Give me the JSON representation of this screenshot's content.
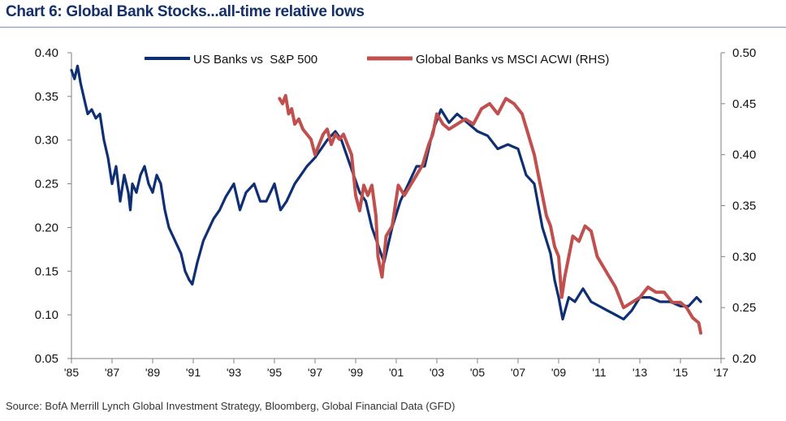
{
  "title": "Chart 6: Global Bank Stocks...all-time relative lows",
  "source": "Source: BofA Merrill Lynch Global Investment Strategy, Bloomberg, Global Financial Data (GFD)",
  "colors": {
    "series1": "#0f2f74",
    "series2": "#c0504d",
    "title": "#14306a",
    "axis": "#808080"
  },
  "chart_data": {
    "type": "line",
    "title": "Chart 6: Global Bank Stocks...all-time relative lows",
    "xlabel": "",
    "ylabel": "",
    "xlim": [
      1985,
      2017
    ],
    "ylim_left": [
      0.05,
      0.4
    ],
    "ylim_right": [
      0.2,
      0.5
    ],
    "x_ticks": [
      1985,
      1987,
      1989,
      1991,
      1993,
      1995,
      1997,
      1999,
      2001,
      2003,
      2005,
      2007,
      2009,
      2011,
      2013,
      2015,
      2017
    ],
    "x_tick_labels": [
      "'85",
      "'87",
      "'89",
      "'91",
      "'93",
      "'95",
      "'97",
      "'99",
      "'01",
      "'03",
      "'05",
      "'07",
      "'09",
      "'11",
      "'13",
      "'15",
      "'17"
    ],
    "y_left_ticks": [
      "0.40",
      "0.35",
      "0.30",
      "0.25",
      "0.20",
      "0.15",
      "0.10",
      "0.05"
    ],
    "y_right_ticks": [
      "0.50",
      "0.45",
      "0.40",
      "0.35",
      "0.30",
      "0.25",
      "0.20"
    ],
    "legend_position": "top",
    "series": [
      {
        "name": "US Banks vs  S&P 500",
        "axis": "left",
        "x": [
          1985.0,
          1985.15,
          1985.3,
          1985.45,
          1985.6,
          1985.8,
          1986.0,
          1986.2,
          1986.4,
          1986.6,
          1986.8,
          1987.0,
          1987.2,
          1987.4,
          1987.6,
          1987.8,
          1987.9,
          1988.0,
          1988.2,
          1988.4,
          1988.6,
          1988.8,
          1989.0,
          1989.2,
          1989.4,
          1989.6,
          1989.8,
          1990.0,
          1990.2,
          1990.4,
          1990.6,
          1990.8,
          1990.95,
          1991.2,
          1991.5,
          1991.8,
          1992.0,
          1992.3,
          1992.6,
          1993.0,
          1993.3,
          1993.6,
          1994.0,
          1994.3,
          1994.6,
          1995.0,
          1995.3,
          1995.6,
          1996.0,
          1996.3,
          1996.6,
          1997.0,
          1997.3,
          1997.6,
          1998.0,
          1998.3,
          1998.6,
          1998.9,
          1999.2,
          1999.5,
          1999.8,
          2000.1,
          2000.4,
          2000.8,
          2001.2,
          2001.6,
          2002.0,
          2002.4,
          2002.8,
          2003.2,
          2003.6,
          2004.0,
          2004.5,
          2005.0,
          2005.5,
          2006.0,
          2006.5,
          2007.0,
          2007.4,
          2007.8,
          2008.2,
          2008.6,
          2008.8,
          2009.0,
          2009.2,
          2009.5,
          2009.8,
          2010.2,
          2010.6,
          2011.0,
          2011.4,
          2011.8,
          2012.2,
          2012.6,
          2013.0,
          2013.5,
          2014.0,
          2014.5,
          2015.0,
          2015.4,
          2015.8,
          2016.0
        ],
        "values": [
          0.38,
          0.37,
          0.385,
          0.365,
          0.35,
          0.33,
          0.335,
          0.325,
          0.33,
          0.3,
          0.28,
          0.25,
          0.27,
          0.23,
          0.26,
          0.24,
          0.22,
          0.25,
          0.24,
          0.26,
          0.27,
          0.25,
          0.24,
          0.26,
          0.25,
          0.22,
          0.2,
          0.19,
          0.18,
          0.17,
          0.15,
          0.14,
          0.135,
          0.16,
          0.185,
          0.2,
          0.21,
          0.22,
          0.235,
          0.25,
          0.22,
          0.24,
          0.25,
          0.23,
          0.23,
          0.25,
          0.22,
          0.23,
          0.25,
          0.26,
          0.27,
          0.28,
          0.29,
          0.3,
          0.31,
          0.3,
          0.28,
          0.26,
          0.24,
          0.23,
          0.2,
          0.18,
          0.16,
          0.2,
          0.23,
          0.25,
          0.27,
          0.27,
          0.31,
          0.335,
          0.32,
          0.33,
          0.32,
          0.31,
          0.305,
          0.29,
          0.295,
          0.29,
          0.26,
          0.25,
          0.2,
          0.17,
          0.14,
          0.12,
          0.095,
          0.12,
          0.115,
          0.13,
          0.115,
          0.11,
          0.105,
          0.1,
          0.095,
          0.105,
          0.12,
          0.12,
          0.115,
          0.115,
          0.11,
          0.11,
          0.12,
          0.115
        ]
      },
      {
        "name": "Global Banks vs MSCI ACWI (RHS)",
        "axis": "right",
        "x": [
          1995.25,
          1995.4,
          1995.55,
          1995.7,
          1995.85,
          1996.0,
          1996.2,
          1996.4,
          1996.6,
          1996.8,
          1997.0,
          1997.2,
          1997.4,
          1997.6,
          1997.8,
          1998.0,
          1998.2,
          1998.4,
          1998.6,
          1998.8,
          1999.0,
          1999.2,
          1999.4,
          1999.6,
          1999.8,
          2000.0,
          2000.1,
          2000.3,
          2000.5,
          2000.8,
          2001.1,
          2001.4,
          2001.7,
          2002.0,
          2002.3,
          2002.6,
          2002.8,
          2003.0,
          2003.3,
          2003.6,
          2004.0,
          2004.4,
          2004.8,
          2005.2,
          2005.6,
          2006.0,
          2006.4,
          2006.8,
          2007.2,
          2007.5,
          2007.8,
          2008.0,
          2008.2,
          2008.4,
          2008.6,
          2008.8,
          2009.0,
          2009.15,
          2009.3,
          2009.5,
          2009.7,
          2010.0,
          2010.3,
          2010.6,
          2010.9,
          2011.2,
          2011.5,
          2011.8,
          2012.2,
          2012.6,
          2013.0,
          2013.4,
          2013.8,
          2014.2,
          2014.6,
          2015.0,
          2015.3,
          2015.6,
          2015.9,
          2016.0
        ],
        "values": [
          0.455,
          0.45,
          0.458,
          0.44,
          0.445,
          0.43,
          0.435,
          0.425,
          0.42,
          0.415,
          0.4,
          0.41,
          0.42,
          0.425,
          0.41,
          0.42,
          0.415,
          0.42,
          0.41,
          0.4,
          0.36,
          0.345,
          0.37,
          0.36,
          0.37,
          0.34,
          0.3,
          0.28,
          0.32,
          0.33,
          0.37,
          0.36,
          0.37,
          0.38,
          0.39,
          0.41,
          0.42,
          0.44,
          0.43,
          0.425,
          0.43,
          0.435,
          0.43,
          0.445,
          0.45,
          0.44,
          0.455,
          0.45,
          0.44,
          0.42,
          0.4,
          0.38,
          0.36,
          0.34,
          0.33,
          0.31,
          0.3,
          0.26,
          0.28,
          0.3,
          0.32,
          0.315,
          0.33,
          0.325,
          0.3,
          0.29,
          0.28,
          0.27,
          0.25,
          0.255,
          0.26,
          0.27,
          0.265,
          0.265,
          0.255,
          0.255,
          0.25,
          0.24,
          0.235,
          0.225
        ]
      }
    ]
  }
}
